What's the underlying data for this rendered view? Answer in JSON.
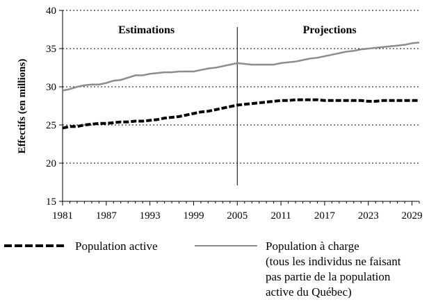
{
  "chart_data": {
    "type": "line",
    "ylabel": "Effectifs (en millions)",
    "xlabel": "",
    "title": "",
    "xlim": [
      1981,
      2030
    ],
    "ylim": [
      15,
      40
    ],
    "yticks": [
      15,
      20,
      25,
      30,
      35,
      40
    ],
    "xticks": [
      1981,
      1987,
      1993,
      1999,
      2005,
      2011,
      2017,
      2023,
      2029
    ],
    "grid": "horizontal dotted",
    "divider_year": 2005,
    "region_labels": [
      "Estimations",
      "Projections"
    ],
    "x": [
      1981,
      1982,
      1983,
      1984,
      1985,
      1986,
      1987,
      1988,
      1989,
      1990,
      1991,
      1992,
      1993,
      1994,
      1995,
      1996,
      1997,
      1998,
      1999,
      2000,
      2001,
      2002,
      2003,
      2004,
      2005,
      2006,
      2007,
      2008,
      2009,
      2010,
      2011,
      2012,
      2013,
      2014,
      2015,
      2016,
      2017,
      2018,
      2019,
      2020,
      2021,
      2022,
      2023,
      2024,
      2025,
      2026,
      2027,
      2028,
      2029,
      2030
    ],
    "series": [
      {
        "name": "Population active",
        "style": "dashed",
        "color": "#000000",
        "values": [
          24.6,
          24.8,
          24.8,
          25.0,
          25.1,
          25.2,
          25.2,
          25.3,
          25.4,
          25.4,
          25.5,
          25.5,
          25.6,
          25.7,
          25.9,
          26.0,
          26.1,
          26.3,
          26.5,
          26.7,
          26.8,
          27.0,
          27.2,
          27.4,
          27.6,
          27.7,
          27.8,
          27.9,
          28.0,
          28.1,
          28.2,
          28.2,
          28.3,
          28.3,
          28.3,
          28.3,
          28.2,
          28.2,
          28.2,
          28.2,
          28.2,
          28.2,
          28.1,
          28.1,
          28.2,
          28.2,
          28.2,
          28.2,
          28.2,
          28.2
        ]
      },
      {
        "name": "Population à charge\n(tous les individus ne faisant\npas partie de la population\nactive du Québec)",
        "style": "solid",
        "color": "#8c8c8c",
        "values": [
          29.5,
          29.7,
          30.0,
          30.2,
          30.3,
          30.3,
          30.5,
          30.8,
          30.9,
          31.2,
          31.5,
          31.5,
          31.7,
          31.8,
          31.9,
          31.9,
          32.0,
          32.0,
          32.0,
          32.2,
          32.4,
          32.5,
          32.7,
          32.9,
          33.1,
          33.0,
          32.9,
          32.9,
          32.9,
          32.9,
          33.1,
          33.2,
          33.3,
          33.5,
          33.7,
          33.8,
          34.0,
          34.2,
          34.4,
          34.6,
          34.7,
          34.9,
          35.0,
          35.1,
          35.2,
          35.3,
          35.4,
          35.5,
          35.7,
          35.8
        ]
      }
    ]
  },
  "legend": {
    "items": [
      {
        "label": "Population active"
      },
      {
        "label": "Population à charge",
        "lines": [
          "(tous les individus ne faisant",
          "pas partie de la population",
          "active du Québec)"
        ]
      }
    ]
  }
}
